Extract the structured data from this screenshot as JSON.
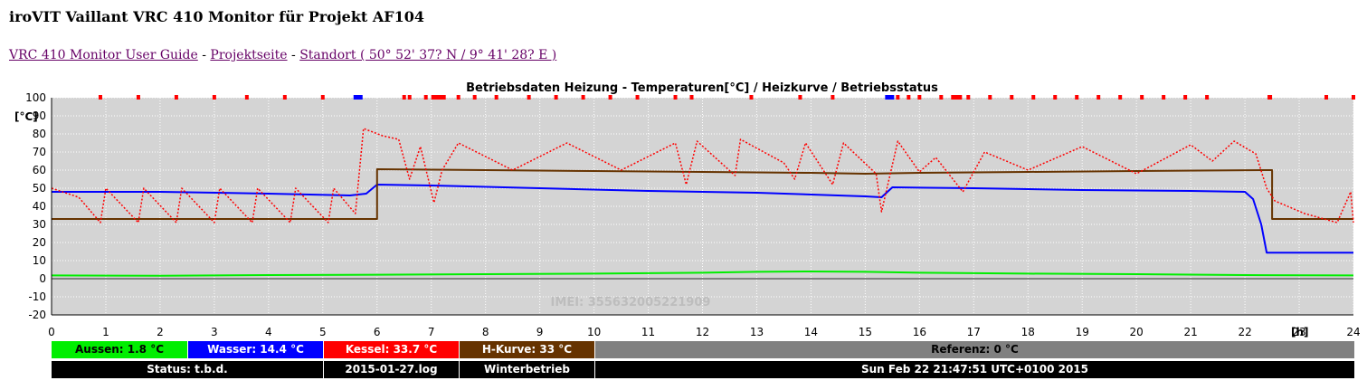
{
  "page": {
    "title": "iroVIT Vaillant VRC 410 Monitor für Projekt AF104",
    "links": [
      "VRC 410 Monitor User Guide",
      "Projektseite",
      "Standort ( 50° 52' 37? N / 9° 41' 28? E )"
    ],
    "separator": " - "
  },
  "legend": {
    "aussen": "Aussen: 1.8 °C",
    "wasser": "Wasser: 14.4 °C",
    "kessel": "Kessel: 33.7 °C",
    "hkurve": "H-Kurve: 33 °C",
    "referenz": "Referenz: 0 °C"
  },
  "status": {
    "status": "Status: t.b.d.",
    "log": "2015-01-27.log",
    "mode": "Winterbetrieb",
    "time": "Sun Feb 22 21:47:51 UTC+0100 2015"
  },
  "colors": {
    "aussen": "#00ee00",
    "wasser": "#0000ff",
    "kessel": "#ff0000",
    "hkurve": "#663300",
    "referenz": "#808080",
    "bar_dark": "#000000",
    "plot_bg": "#d4d4d4"
  },
  "chart_data": {
    "type": "line",
    "title": "Betriebsdaten Heizung - Temperaturen[°C] / Heizkurve / Betriebsstatus",
    "ylabel": "[°C]",
    "xlabel": "[h]",
    "watermark": "IMEI: 355632005221909",
    "xlim": [
      0,
      24
    ],
    "ylim": [
      -20,
      100
    ],
    "xticks": [
      0,
      1,
      2,
      3,
      4,
      5,
      6,
      7,
      8,
      9,
      10,
      11,
      12,
      13,
      14,
      15,
      16,
      17,
      18,
      19,
      20,
      21,
      22,
      23,
      24
    ],
    "yticks": [
      -20,
      -10,
      0,
      10,
      20,
      30,
      40,
      50,
      60,
      70,
      80,
      90,
      100
    ],
    "grid": true,
    "series": [
      {
        "name": "Aussen",
        "color": "#00ee00",
        "style": "line",
        "points": [
          [
            0,
            1.8
          ],
          [
            2,
            1.6
          ],
          [
            4,
            2
          ],
          [
            6,
            2.2
          ],
          [
            8,
            2.5
          ],
          [
            10,
            2.8
          ],
          [
            12,
            3.3
          ],
          [
            13,
            3.8
          ],
          [
            14,
            4
          ],
          [
            15,
            3.8
          ],
          [
            16,
            3.3
          ],
          [
            18,
            2.8
          ],
          [
            20,
            2.5
          ],
          [
            22,
            2
          ],
          [
            24,
            1.8
          ]
        ]
      },
      {
        "name": "Wasser",
        "color": "#0000ff",
        "style": "line",
        "points": [
          [
            0,
            48
          ],
          [
            2,
            48
          ],
          [
            4,
            47
          ],
          [
            5.5,
            46
          ],
          [
            5.8,
            47
          ],
          [
            6,
            52
          ],
          [
            7,
            51.5
          ],
          [
            9,
            50
          ],
          [
            11,
            48.5
          ],
          [
            13,
            47.5
          ],
          [
            15,
            45.5
          ],
          [
            15.3,
            45
          ],
          [
            15.5,
            50.5
          ],
          [
            17,
            50
          ],
          [
            19,
            49
          ],
          [
            21,
            48.5
          ],
          [
            22,
            48
          ],
          [
            22.15,
            44
          ],
          [
            22.3,
            30
          ],
          [
            22.4,
            14.4
          ],
          [
            24,
            14.4
          ]
        ]
      },
      {
        "name": "H-Kurve",
        "color": "#663300",
        "style": "line",
        "points": [
          [
            0,
            33
          ],
          [
            6,
            33
          ],
          [
            6,
            60.5
          ],
          [
            8,
            60
          ],
          [
            10,
            59.5
          ],
          [
            12,
            59
          ],
          [
            14,
            58.5
          ],
          [
            15,
            58
          ],
          [
            16,
            58.5
          ],
          [
            18,
            59
          ],
          [
            20,
            59.5
          ],
          [
            22.5,
            60
          ],
          [
            22.5,
            33
          ],
          [
            24,
            33
          ]
        ]
      },
      {
        "name": "Kessel",
        "color": "#ff0000",
        "style": "dotted",
        "points": [
          [
            0,
            50
          ],
          [
            0.5,
            45
          ],
          [
            0.9,
            31
          ],
          [
            1,
            50
          ],
          [
            1.6,
            31
          ],
          [
            1.7,
            50
          ],
          [
            2.3,
            31
          ],
          [
            2.4,
            50
          ],
          [
            3,
            31
          ],
          [
            3.1,
            50
          ],
          [
            3.7,
            31
          ],
          [
            3.8,
            50
          ],
          [
            4.4,
            31
          ],
          [
            4.5,
            50
          ],
          [
            5.1,
            31
          ],
          [
            5.2,
            50
          ],
          [
            5.6,
            36
          ],
          [
            5.75,
            83
          ],
          [
            6.1,
            79
          ],
          [
            6.4,
            77
          ],
          [
            6.6,
            55
          ],
          [
            6.8,
            73
          ],
          [
            7.05,
            42
          ],
          [
            7.2,
            60
          ],
          [
            7.5,
            75
          ],
          [
            8.5,
            60
          ],
          [
            9.5,
            75
          ],
          [
            10.5,
            60
          ],
          [
            11.5,
            75
          ],
          [
            11.7,
            52
          ],
          [
            11.9,
            76
          ],
          [
            12.6,
            57
          ],
          [
            12.7,
            77
          ],
          [
            13.5,
            64
          ],
          [
            13.7,
            55
          ],
          [
            13.9,
            75
          ],
          [
            14.4,
            52
          ],
          [
            14.6,
            75
          ],
          [
            15.2,
            58
          ],
          [
            15.3,
            37
          ],
          [
            15.6,
            76
          ],
          [
            16,
            59
          ],
          [
            16.3,
            67
          ],
          [
            16.8,
            48
          ],
          [
            17.2,
            70
          ],
          [
            18,
            60
          ],
          [
            19,
            73
          ],
          [
            20,
            58
          ],
          [
            21,
            74
          ],
          [
            21.4,
            65
          ],
          [
            21.8,
            76
          ],
          [
            22.2,
            69
          ],
          [
            22.4,
            50
          ],
          [
            22.55,
            43
          ],
          [
            23.1,
            36
          ],
          [
            23.7,
            31
          ],
          [
            23.95,
            48
          ],
          [
            24,
            31
          ]
        ]
      }
    ]
  }
}
